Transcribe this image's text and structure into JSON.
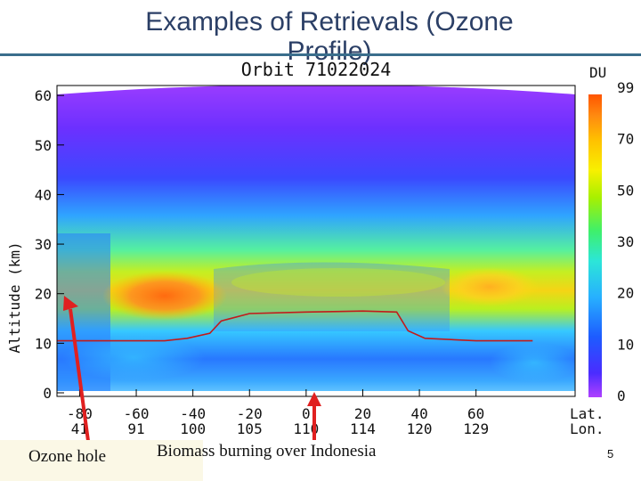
{
  "slide": {
    "title": "Examples of Retrievals (Ozone Profile)",
    "page_number": "5"
  },
  "annotations": {
    "ozone_hole": "Ozone hole",
    "biomass": "Biomass burning over Indonesia"
  },
  "chart_data": {
    "type": "heatmap",
    "title": "Orbit 71022024",
    "ylabel": "Altitude (km)",
    "ylim": [
      0,
      62
    ],
    "yticks": [
      0,
      10,
      20,
      30,
      40,
      50,
      60
    ],
    "xlim": [
      -88,
      95
    ],
    "xticks": [
      {
        "lat": "-80",
        "lon": "41",
        "x": -80
      },
      {
        "lat": "-60",
        "lon": "91",
        "x": -60
      },
      {
        "lat": "-40",
        "lon": "100",
        "x": -40
      },
      {
        "lat": "-20",
        "lon": "105",
        "x": -20
      },
      {
        "lat": "0",
        "lon": "110",
        "x": 0
      },
      {
        "lat": "20",
        "lon": "114",
        "x": 20
      },
      {
        "lat": "40",
        "lon": "120",
        "x": 40
      },
      {
        "lat": "60",
        "lon": "129",
        "x": 60
      }
    ],
    "x_axis_labels": {
      "lat": "Lat.",
      "lon": "Lon."
    },
    "colorbar": {
      "label": "DU",
      "ticks": [
        "99",
        "70",
        "50",
        "30",
        "20",
        "10",
        "0"
      ],
      "colors": [
        "#1020ff",
        "#2a70ff",
        "#27b0ff",
        "#2ce6d8",
        "#3ff06a",
        "#a8f000",
        "#f8f000",
        "#ffc000",
        "#ff8a10",
        "#ff5500"
      ]
    },
    "tropopause": [
      {
        "lat": -88,
        "alt": 10.5
      },
      {
        "lat": -70,
        "alt": 10.5
      },
      {
        "lat": -50,
        "alt": 10.5
      },
      {
        "lat": -42,
        "alt": 11
      },
      {
        "lat": -34,
        "alt": 12
      },
      {
        "lat": -30,
        "alt": 14.5
      },
      {
        "lat": -20,
        "alt": 16
      },
      {
        "lat": 0,
        "alt": 16.3
      },
      {
        "lat": 20,
        "alt": 16.5
      },
      {
        "lat": 32,
        "alt": 16.3
      },
      {
        "lat": 36,
        "alt": 12.5
      },
      {
        "lat": 42,
        "alt": 11
      },
      {
        "lat": 60,
        "alt": 10.5
      },
      {
        "lat": 80,
        "alt": 10.5
      }
    ]
  }
}
